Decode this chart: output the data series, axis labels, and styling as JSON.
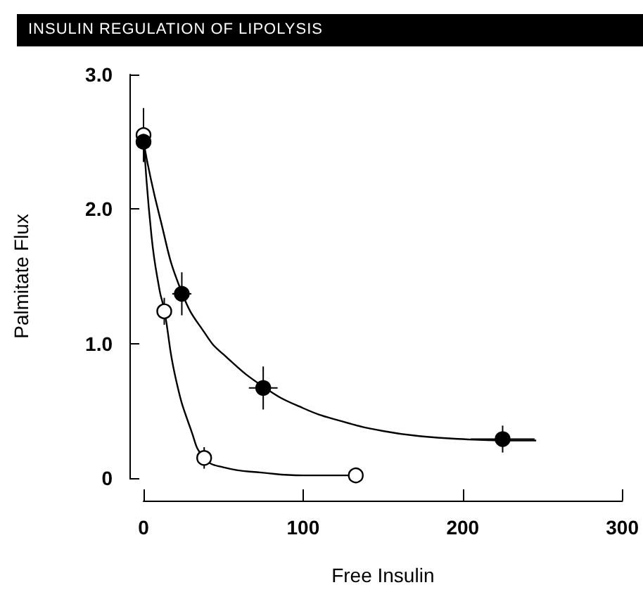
{
  "chart_data": {
    "type": "scatter",
    "title": "INSULIN REGULATION OF LIPOLYSIS",
    "xlabel": "Free Insulin",
    "ylabel": "Palmitate Flux",
    "xlim": [
      0,
      300
    ],
    "xticks": [
      0,
      100,
      200,
      300
    ],
    "ylim": [
      0,
      3
    ],
    "yticks": [
      {
        "value": 0,
        "label": "0"
      },
      {
        "value": 1,
        "label": "1.0"
      },
      {
        "value": 2,
        "label": "2.0"
      },
      {
        "value": 3,
        "label": "3.0"
      }
    ],
    "grid": false,
    "series": [
      {
        "type": "line",
        "marker": "none",
        "color": "#000000",
        "x": [
          0,
          10,
          24,
          40,
          50,
          75,
          100,
          125,
          150,
          175,
          200,
          225,
          246
        ],
        "values": [
          2.5,
          1.95,
          1.38,
          1.05,
          0.92,
          0.68,
          0.52,
          0.42,
          0.35,
          0.31,
          0.29,
          0.28,
          0.28
        ]
      },
      {
        "type": "line",
        "marker": "none",
        "color": "#000000",
        "x": [
          0,
          5,
          10,
          13,
          20,
          30,
          38,
          50,
          75,
          100,
          133
        ],
        "values": [
          2.55,
          1.8,
          1.4,
          1.25,
          0.75,
          0.35,
          0.15,
          0.08,
          0.04,
          0.02,
          0.02
        ]
      },
      {
        "marker": "circle",
        "color": "#ffffff",
        "x": [
          0,
          13,
          38,
          133
        ],
        "values": [
          2.55,
          1.24,
          0.15,
          0.02
        ],
        "errors": [
          0.2,
          0.1,
          0.08,
          0.03
        ],
        "xerrors": [
          null,
          null,
          4,
          null
        ]
      },
      {
        "marker": "circle",
        "color": "#000000",
        "x": [
          0,
          24,
          75,
          225
        ],
        "values": [
          2.5,
          1.37,
          0.67,
          0.29
        ],
        "errors": [
          0.15,
          0.16,
          0.16,
          0.1
        ],
        "xerrors": [
          null,
          6,
          9,
          20
        ]
      }
    ]
  }
}
